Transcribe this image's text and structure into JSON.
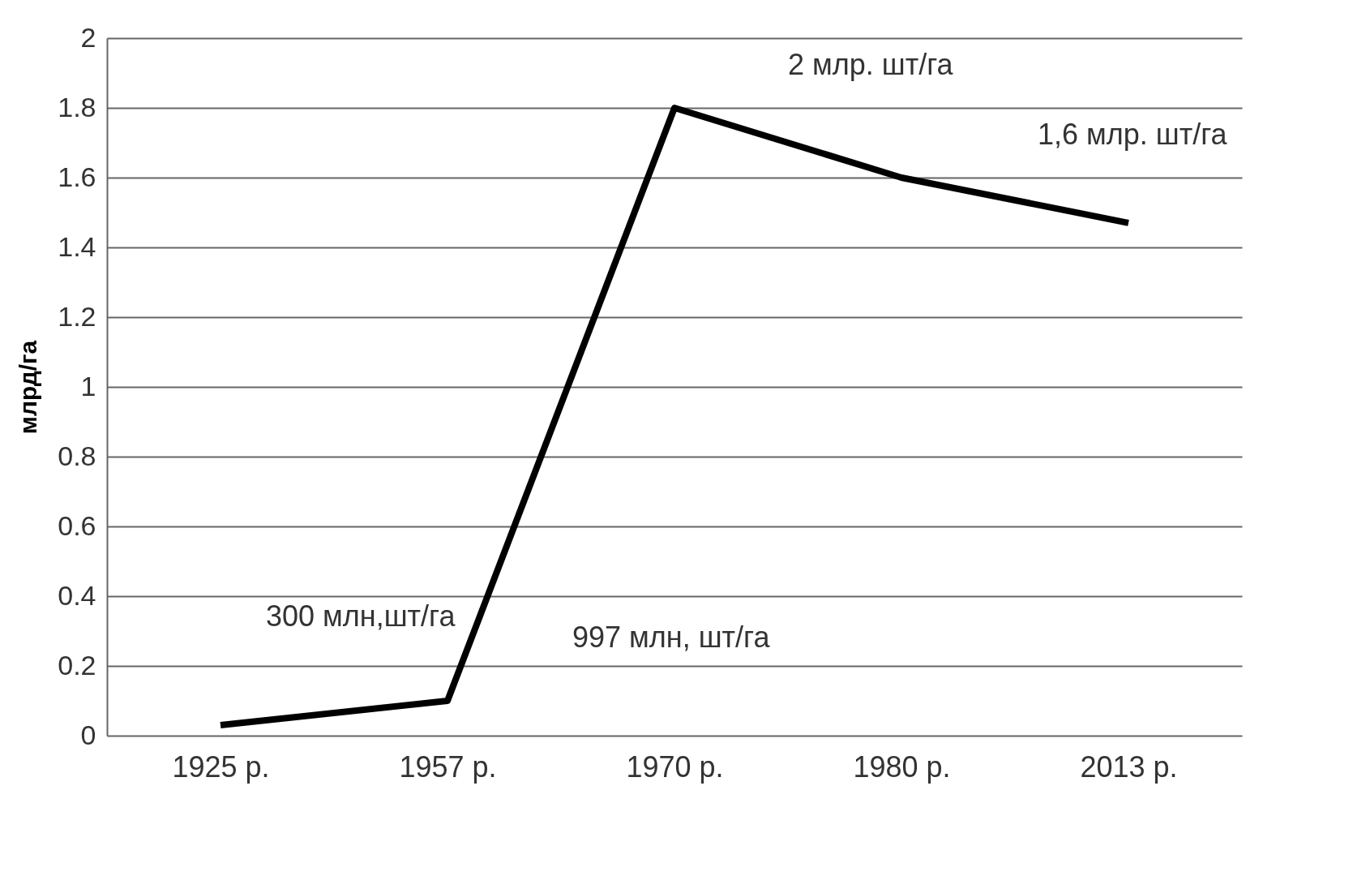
{
  "chart_data": {
    "type": "line",
    "ylabel": "млрд/га",
    "categories": [
      "1925 р.",
      "1957 р.",
      "1970 р.",
      "1980 р.",
      "2013 р."
    ],
    "series": [
      {
        "color": "#000000",
        "values": [
          0.03,
          0.1,
          1.8,
          1.6,
          1.47
        ]
      }
    ],
    "ylim": [
      0,
      2
    ],
    "yticks": [
      0,
      0.2,
      0.4,
      0.6,
      0.8,
      1,
      1.2,
      1.4,
      1.6,
      1.8,
      2
    ],
    "grid": "y",
    "marker": "none",
    "line_style": "solid",
    "annotations": [
      "300 млн,шт/га",
      "997 млн, шт/га",
      "2 млр. шт/га",
      "1,6 млр. шт/га"
    ]
  }
}
